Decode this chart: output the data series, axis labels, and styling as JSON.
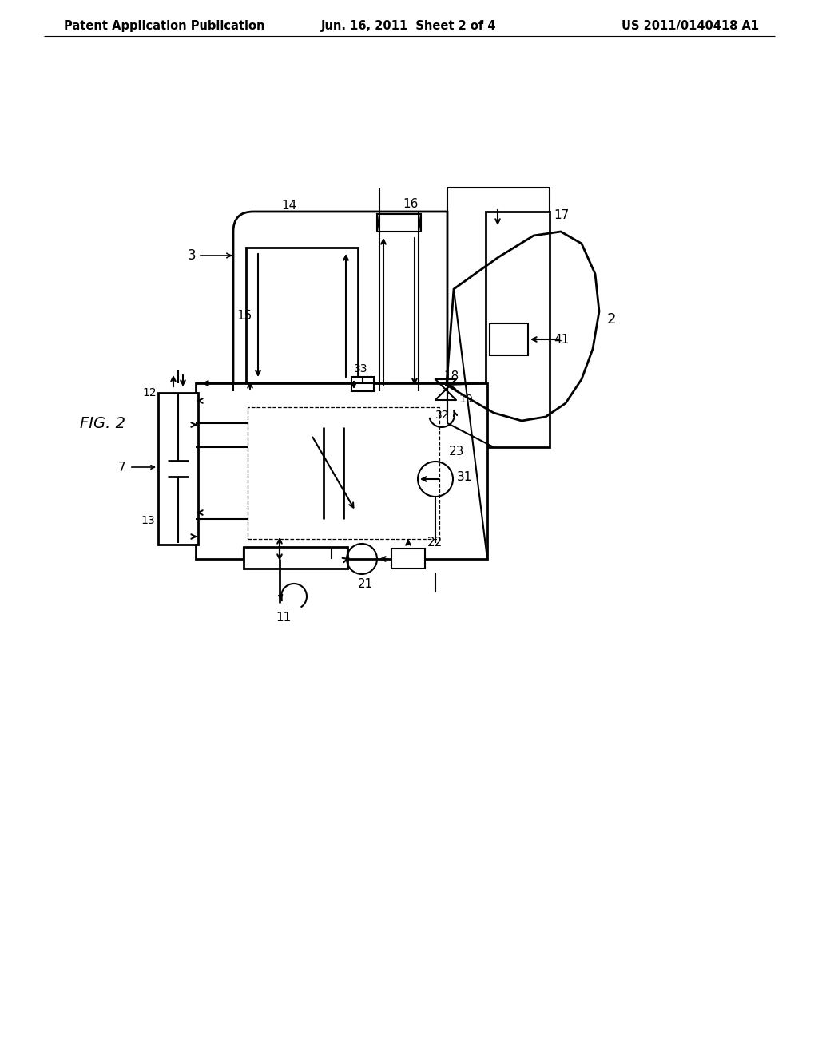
{
  "title_left": "Patent Application Publication",
  "title_mid": "Jun. 16, 2011  Sheet 2 of 4",
  "title_right": "US 2011/0140418 A1",
  "fig_label": "FIG. 2",
  "background_color": "#ffffff",
  "line_color": "#000000"
}
